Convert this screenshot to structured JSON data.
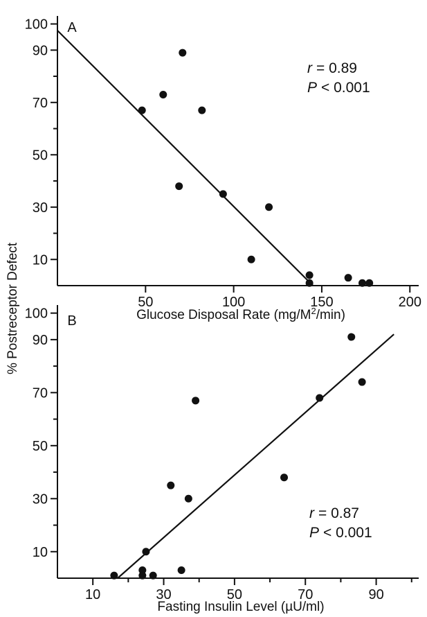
{
  "colors": {
    "ink": "#111111",
    "background": "#ffffff"
  },
  "ylabel": "% Postreceptor Defect",
  "chart_data": [
    {
      "type": "scatter",
      "panel_label": "A",
      "xlabel_parts": [
        "Glucose Disposal Rate (mg/M",
        "2",
        "/min)"
      ],
      "xlim": [
        0,
        205
      ],
      "ylim": [
        0,
        102
      ],
      "x_ticks": [
        50,
        100,
        150,
        200
      ],
      "y_ticks": [
        10,
        30,
        50,
        70,
        90,
        100
      ],
      "y_minor_ticks": [
        20,
        40,
        60,
        80
      ],
      "grid": false,
      "annotation": {
        "r_symbol": "r",
        "r_value": "= 0.89",
        "p_symbol": "P",
        "p_value": "< 0.001"
      },
      "points": [
        {
          "x": 48,
          "y": 67
        },
        {
          "x": 60,
          "y": 73
        },
        {
          "x": 69,
          "y": 38
        },
        {
          "x": 71,
          "y": 89
        },
        {
          "x": 82,
          "y": 67
        },
        {
          "x": 94,
          "y": 35
        },
        {
          "x": 110,
          "y": 10
        },
        {
          "x": 120,
          "y": 30
        },
        {
          "x": 143,
          "y": 4
        },
        {
          "x": 143,
          "y": 1
        },
        {
          "x": 165,
          "y": 3
        },
        {
          "x": 173,
          "y": 1
        },
        {
          "x": 177,
          "y": 1
        }
      ],
      "fit_line": [
        {
          "x": 0,
          "y": 97.5
        },
        {
          "x": 145,
          "y": 0
        }
      ]
    },
    {
      "type": "scatter",
      "panel_label": "B",
      "xlabel_parts": [
        "Fasting Insulin Level (µU/ml)"
      ],
      "xlim": [
        0,
        102
      ],
      "ylim": [
        0,
        102
      ],
      "x_ticks": [
        10,
        30,
        50,
        70,
        90
      ],
      "x_minor_ticks": [
        20,
        40,
        60,
        80,
        100
      ],
      "y_ticks": [
        10,
        30,
        50,
        70,
        90,
        100
      ],
      "y_minor_ticks": [
        20,
        40,
        60,
        80
      ],
      "grid": false,
      "annotation": {
        "r_symbol": "r",
        "r_value": "= 0.87",
        "p_symbol": "P",
        "p_value": "< 0.001"
      },
      "points": [
        {
          "x": 16,
          "y": 1
        },
        {
          "x": 24,
          "y": 3
        },
        {
          "x": 24,
          "y": 1
        },
        {
          "x": 25,
          "y": 10
        },
        {
          "x": 27,
          "y": 1
        },
        {
          "x": 32,
          "y": 35
        },
        {
          "x": 35,
          "y": 3
        },
        {
          "x": 37,
          "y": 30
        },
        {
          "x": 39,
          "y": 67
        },
        {
          "x": 64,
          "y": 38
        },
        {
          "x": 74,
          "y": 68
        },
        {
          "x": 83,
          "y": 91
        },
        {
          "x": 86,
          "y": 74
        }
      ],
      "fit_line": [
        {
          "x": 17,
          "y": 0
        },
        {
          "x": 95,
          "y": 92
        }
      ]
    }
  ]
}
